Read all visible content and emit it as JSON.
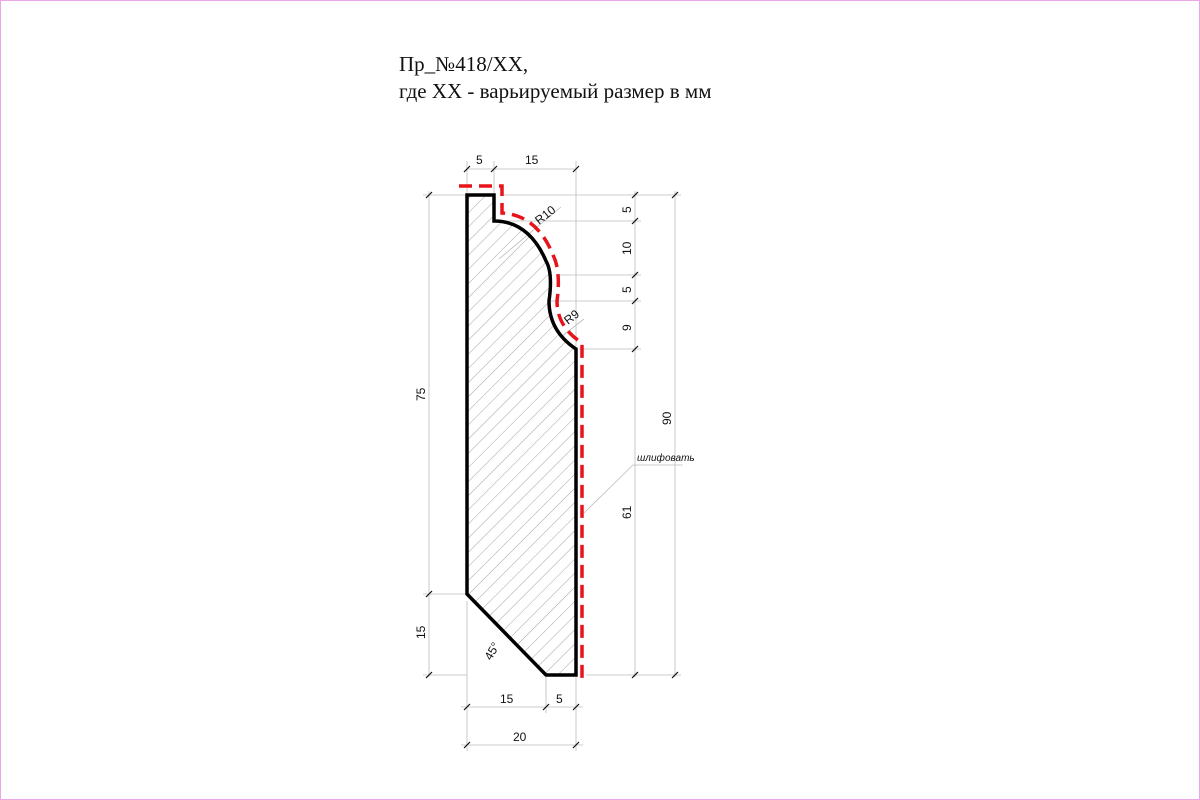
{
  "title": {
    "line1": "Пр_№418/XX,",
    "line2": "где XX - варьируемый размер в мм"
  },
  "dimensions": {
    "top_left_width": "5",
    "top_right_width": "15",
    "right_step_5_top": "5",
    "right_step_10": "10",
    "right_step_5_mid": "5",
    "right_step_9": "9",
    "right_step_61": "61",
    "overall_height": "90",
    "left_height_75": "75",
    "left_height_15": "15",
    "bottom_width_15": "15",
    "bottom_width_5": "5",
    "overall_width": "20",
    "radius_upper": "R10",
    "radius_lower": "R9",
    "chamfer_angle": "45°"
  },
  "note": {
    "sanding": "шлифовать"
  },
  "colors": {
    "profile_outline": "#000000",
    "sanding_line": "#e8141b",
    "hatch": "#8c8c8c",
    "dimension_lines": "#bdbdbd",
    "border": "#e9a6ea"
  }
}
